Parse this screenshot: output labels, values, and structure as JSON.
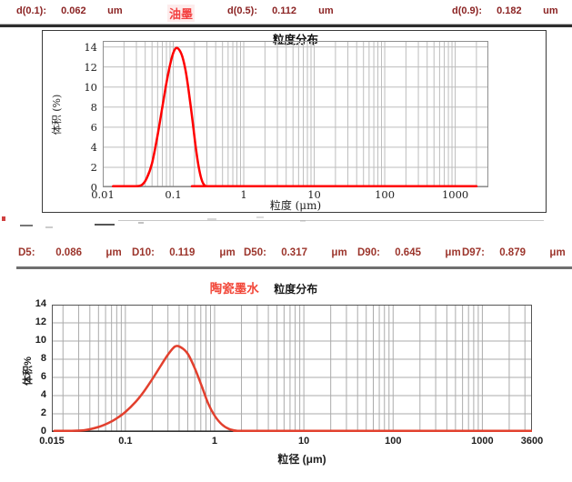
{
  "header": {
    "items": [
      {
        "label": "d(0.1):",
        "value": "0.062",
        "unit": "um"
      },
      {
        "label": "d(0.5):",
        "value": "0.112",
        "unit": "um"
      },
      {
        "label": "d(0.9):",
        "value": "0.182",
        "unit": "um"
      }
    ]
  },
  "d_row": {
    "items": [
      {
        "label": "D5:",
        "value": "0.086",
        "unit": "μm"
      },
      {
        "label": "D10:",
        "value": "0.119",
        "unit": "μm"
      },
      {
        "label": "D50:",
        "value": "0.317",
        "unit": "μm"
      },
      {
        "label": "D90:",
        "value": "0.645",
        "unit": "μm"
      },
      {
        "label": "D97:",
        "value": "0.879",
        "unit": "μm"
      }
    ]
  },
  "chart_data": [
    {
      "type": "line",
      "title": "粒度分布",
      "xlabel": "粒度 (μm)",
      "ylabel": "体积 (%)",
      "xscale": "log",
      "xlim": [
        0.01,
        2950
      ],
      "ylim": [
        0,
        14.6
      ],
      "yticks": [
        0,
        2,
        4,
        6,
        8,
        10,
        12,
        14
      ],
      "xticks": [
        0.01,
        0.1,
        1,
        10,
        100,
        1000
      ],
      "xtick_labels": [
        "0.01",
        "0.1",
        "1",
        "10",
        "100",
        "1000"
      ],
      "grid": true,
      "line_color": "#ff0000",
      "grid_color": "#bdbdbd",
      "border_color": "#8f8f8f",
      "axis_color": "#8f8f8f",
      "series": [
        {
          "name": "油墨",
          "points": [
            [
              0.014,
              0
            ],
            [
              0.022,
              0
            ],
            [
              0.03,
              0.04
            ],
            [
              0.036,
              0.25
            ],
            [
              0.042,
              0.9
            ],
            [
              0.05,
              2.4
            ],
            [
              0.06,
              5.2
            ],
            [
              0.07,
              8.0
            ],
            [
              0.08,
              10.4
            ],
            [
              0.09,
              12.2
            ],
            [
              0.1,
              13.4
            ],
            [
              0.11,
              13.9
            ],
            [
              0.122,
              13.7
            ],
            [
              0.135,
              13.0
            ],
            [
              0.15,
              11.6
            ],
            [
              0.165,
              9.7
            ],
            [
              0.185,
              7.0
            ],
            [
              0.205,
              4.4
            ],
            [
              0.225,
              2.4
            ],
            [
              0.245,
              1.1
            ],
            [
              0.265,
              0.4
            ],
            [
              0.29,
              0.1
            ],
            [
              0.32,
              0.01
            ],
            [
              0.36,
              0
            ],
            [
              2000,
              0
            ]
          ]
        }
      ]
    },
    {
      "type": "line",
      "title": "粒度分布",
      "xlabel": "粒径 (μm)",
      "ylabel": "体积%",
      "xscale": "log",
      "xlim": [
        0.015,
        3600
      ],
      "ylim": [
        0,
        14
      ],
      "yticks": [
        0,
        2,
        4,
        6,
        8,
        10,
        12,
        14
      ],
      "xticks": [
        0.015,
        0.1,
        1,
        10,
        100,
        1000,
        3600
      ],
      "xtick_labels": [
        "0.015",
        "0.1",
        "1",
        "10",
        "100",
        "1000",
        "3600"
      ],
      "grid": true,
      "line_color": "#e2402e",
      "grid_color": "#ababab",
      "border_color": "#555555",
      "axis_color": "#333333",
      "series": [
        {
          "name": "陶瓷墨水",
          "points": [
            [
              0.016,
              0
            ],
            [
              0.025,
              0.06
            ],
            [
              0.035,
              0.2
            ],
            [
              0.05,
              0.55
            ],
            [
              0.065,
              1.0
            ],
            [
              0.08,
              1.5
            ],
            [
              0.1,
              2.2
            ],
            [
              0.13,
              3.3
            ],
            [
              0.16,
              4.4
            ],
            [
              0.2,
              5.8
            ],
            [
              0.25,
              7.3
            ],
            [
              0.3,
              8.5
            ],
            [
              0.36,
              9.4
            ],
            [
              0.42,
              9.3
            ],
            [
              0.5,
              8.6
            ],
            [
              0.6,
              7.0
            ],
            [
              0.72,
              5.0
            ],
            [
              0.85,
              3.1
            ],
            [
              1.0,
              1.8
            ],
            [
              1.2,
              0.85
            ],
            [
              1.45,
              0.33
            ],
            [
              1.8,
              0.1
            ],
            [
              2.3,
              0.02
            ],
            [
              3.0,
              0
            ],
            [
              3600,
              0
            ]
          ]
        }
      ]
    }
  ]
}
